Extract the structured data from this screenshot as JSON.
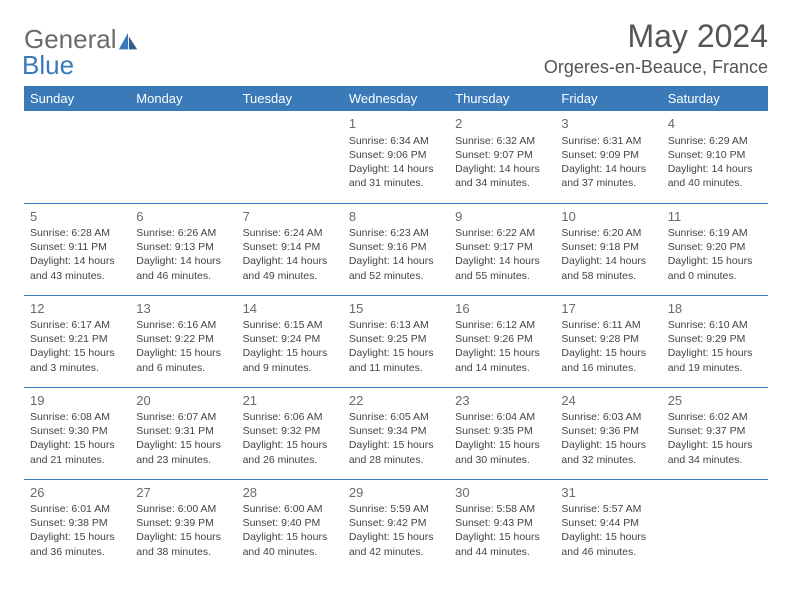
{
  "logo": {
    "word1": "General",
    "word2": "Blue"
  },
  "title": "May 2024",
  "location": "Orgeres-en-Beauce, France",
  "colors": {
    "header_bg": "#3a7ab8",
    "header_fg": "#ffffff",
    "rule": "#3a7ab8",
    "text": "#444444",
    "title_text": "#555555",
    "logo_gray": "#6b6b6b",
    "logo_blue": "#3a7ab8",
    "background": "#ffffff"
  },
  "typography": {
    "title_fontsize": 32,
    "location_fontsize": 18,
    "dayheader_fontsize": 13,
    "daynum_fontsize": 13,
    "body_fontsize": 10.5,
    "font_family": "Arial"
  },
  "day_headers": [
    "Sunday",
    "Monday",
    "Tuesday",
    "Wednesday",
    "Thursday",
    "Friday",
    "Saturday"
  ],
  "weeks": [
    [
      null,
      null,
      null,
      {
        "n": "1",
        "sunrise": "6:34 AM",
        "sunset": "9:06 PM",
        "dl": "14 hours and 31 minutes."
      },
      {
        "n": "2",
        "sunrise": "6:32 AM",
        "sunset": "9:07 PM",
        "dl": "14 hours and 34 minutes."
      },
      {
        "n": "3",
        "sunrise": "6:31 AM",
        "sunset": "9:09 PM",
        "dl": "14 hours and 37 minutes."
      },
      {
        "n": "4",
        "sunrise": "6:29 AM",
        "sunset": "9:10 PM",
        "dl": "14 hours and 40 minutes."
      }
    ],
    [
      {
        "n": "5",
        "sunrise": "6:28 AM",
        "sunset": "9:11 PM",
        "dl": "14 hours and 43 minutes."
      },
      {
        "n": "6",
        "sunrise": "6:26 AM",
        "sunset": "9:13 PM",
        "dl": "14 hours and 46 minutes."
      },
      {
        "n": "7",
        "sunrise": "6:24 AM",
        "sunset": "9:14 PM",
        "dl": "14 hours and 49 minutes."
      },
      {
        "n": "8",
        "sunrise": "6:23 AM",
        "sunset": "9:16 PM",
        "dl": "14 hours and 52 minutes."
      },
      {
        "n": "9",
        "sunrise": "6:22 AM",
        "sunset": "9:17 PM",
        "dl": "14 hours and 55 minutes."
      },
      {
        "n": "10",
        "sunrise": "6:20 AM",
        "sunset": "9:18 PM",
        "dl": "14 hours and 58 minutes."
      },
      {
        "n": "11",
        "sunrise": "6:19 AM",
        "sunset": "9:20 PM",
        "dl": "15 hours and 0 minutes."
      }
    ],
    [
      {
        "n": "12",
        "sunrise": "6:17 AM",
        "sunset": "9:21 PM",
        "dl": "15 hours and 3 minutes."
      },
      {
        "n": "13",
        "sunrise": "6:16 AM",
        "sunset": "9:22 PM",
        "dl": "15 hours and 6 minutes."
      },
      {
        "n": "14",
        "sunrise": "6:15 AM",
        "sunset": "9:24 PM",
        "dl": "15 hours and 9 minutes."
      },
      {
        "n": "15",
        "sunrise": "6:13 AM",
        "sunset": "9:25 PM",
        "dl": "15 hours and 11 minutes."
      },
      {
        "n": "16",
        "sunrise": "6:12 AM",
        "sunset": "9:26 PM",
        "dl": "15 hours and 14 minutes."
      },
      {
        "n": "17",
        "sunrise": "6:11 AM",
        "sunset": "9:28 PM",
        "dl": "15 hours and 16 minutes."
      },
      {
        "n": "18",
        "sunrise": "6:10 AM",
        "sunset": "9:29 PM",
        "dl": "15 hours and 19 minutes."
      }
    ],
    [
      {
        "n": "19",
        "sunrise": "6:08 AM",
        "sunset": "9:30 PM",
        "dl": "15 hours and 21 minutes."
      },
      {
        "n": "20",
        "sunrise": "6:07 AM",
        "sunset": "9:31 PM",
        "dl": "15 hours and 23 minutes."
      },
      {
        "n": "21",
        "sunrise": "6:06 AM",
        "sunset": "9:32 PM",
        "dl": "15 hours and 26 minutes."
      },
      {
        "n": "22",
        "sunrise": "6:05 AM",
        "sunset": "9:34 PM",
        "dl": "15 hours and 28 minutes."
      },
      {
        "n": "23",
        "sunrise": "6:04 AM",
        "sunset": "9:35 PM",
        "dl": "15 hours and 30 minutes."
      },
      {
        "n": "24",
        "sunrise": "6:03 AM",
        "sunset": "9:36 PM",
        "dl": "15 hours and 32 minutes."
      },
      {
        "n": "25",
        "sunrise": "6:02 AM",
        "sunset": "9:37 PM",
        "dl": "15 hours and 34 minutes."
      }
    ],
    [
      {
        "n": "26",
        "sunrise": "6:01 AM",
        "sunset": "9:38 PM",
        "dl": "15 hours and 36 minutes."
      },
      {
        "n": "27",
        "sunrise": "6:00 AM",
        "sunset": "9:39 PM",
        "dl": "15 hours and 38 minutes."
      },
      {
        "n": "28",
        "sunrise": "6:00 AM",
        "sunset": "9:40 PM",
        "dl": "15 hours and 40 minutes."
      },
      {
        "n": "29",
        "sunrise": "5:59 AM",
        "sunset": "9:42 PM",
        "dl": "15 hours and 42 minutes."
      },
      {
        "n": "30",
        "sunrise": "5:58 AM",
        "sunset": "9:43 PM",
        "dl": "15 hours and 44 minutes."
      },
      {
        "n": "31",
        "sunrise": "5:57 AM",
        "sunset": "9:44 PM",
        "dl": "15 hours and 46 minutes."
      },
      null
    ]
  ],
  "labels": {
    "sunrise": "Sunrise: ",
    "sunset": "Sunset: ",
    "daylight": "Daylight: "
  }
}
